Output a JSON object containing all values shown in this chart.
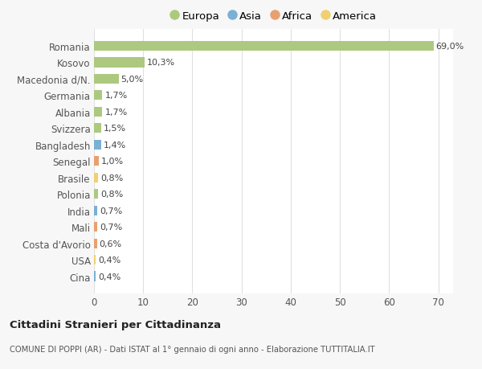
{
  "categories": [
    "Romania",
    "Kosovo",
    "Macedonia d/N.",
    "Germania",
    "Albania",
    "Svizzera",
    "Bangladesh",
    "Senegal",
    "Brasile",
    "Polonia",
    "India",
    "Mali",
    "Costa d'Avorio",
    "USA",
    "Cina"
  ],
  "values": [
    69.0,
    10.3,
    5.0,
    1.7,
    1.7,
    1.5,
    1.4,
    1.0,
    0.8,
    0.8,
    0.7,
    0.7,
    0.6,
    0.4,
    0.4
  ],
  "labels": [
    "69,0%",
    "10,3%",
    "5,0%",
    "1,7%",
    "1,7%",
    "1,5%",
    "1,4%",
    "1,0%",
    "0,8%",
    "0,8%",
    "0,7%",
    "0,7%",
    "0,6%",
    "0,4%",
    "0,4%"
  ],
  "continents": [
    "Europa",
    "Europa",
    "Europa",
    "Europa",
    "Europa",
    "Europa",
    "Asia",
    "Africa",
    "America",
    "Europa",
    "Asia",
    "Africa",
    "Africa",
    "America",
    "Asia"
  ],
  "continent_colors": {
    "Europa": "#adc97f",
    "Asia": "#7ab0d4",
    "Africa": "#e8a070",
    "America": "#f0d070"
  },
  "legend_order": [
    "Europa",
    "Asia",
    "Africa",
    "America"
  ],
  "bg_color": "#f7f7f7",
  "plot_bg_color": "#ffffff",
  "xlim": [
    0,
    73
  ],
  "xticks": [
    0,
    10,
    20,
    30,
    40,
    50,
    60,
    70
  ],
  "label_fontsize": 8.0,
  "bar_height": 0.6,
  "grid_color": "#e0e0e0",
  "title_bold": "Cittadini Stranieri per Cittadinanza",
  "subtitle": "COMUNE DI POPPI (AR) - Dati ISTAT al 1° gennaio di ogni anno - Elaborazione TUTTITALIA.IT"
}
